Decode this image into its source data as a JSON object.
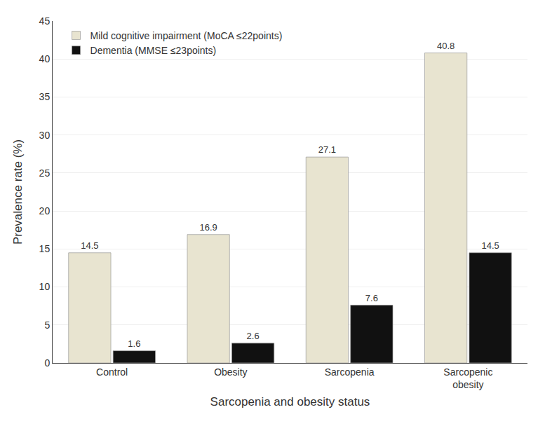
{
  "chart_data": {
    "type": "bar",
    "categories": [
      "Control",
      "Obesity",
      "Sarcopenia",
      "Sarcopenic\nobesity"
    ],
    "series": [
      {
        "name": "Mild cognitive impairment (MoCA ≤22points)",
        "color": "#e8e4d0",
        "values": [
          14.5,
          16.9,
          27.1,
          40.8
        ]
      },
      {
        "name": "Dementia (MMSE ≤23points)",
        "color": "#111111",
        "values": [
          1.6,
          2.6,
          7.6,
          14.5
        ]
      }
    ],
    "xlabel": "Sarcopenia and obesity status",
    "ylabel": "Prevalence rate (%)",
    "ylim": [
      0,
      45
    ],
    "yticks": [
      0,
      5,
      10,
      15,
      20,
      25,
      30,
      35,
      40,
      45
    ],
    "grid": true,
    "legend": "upper left",
    "data_labels": true
  }
}
